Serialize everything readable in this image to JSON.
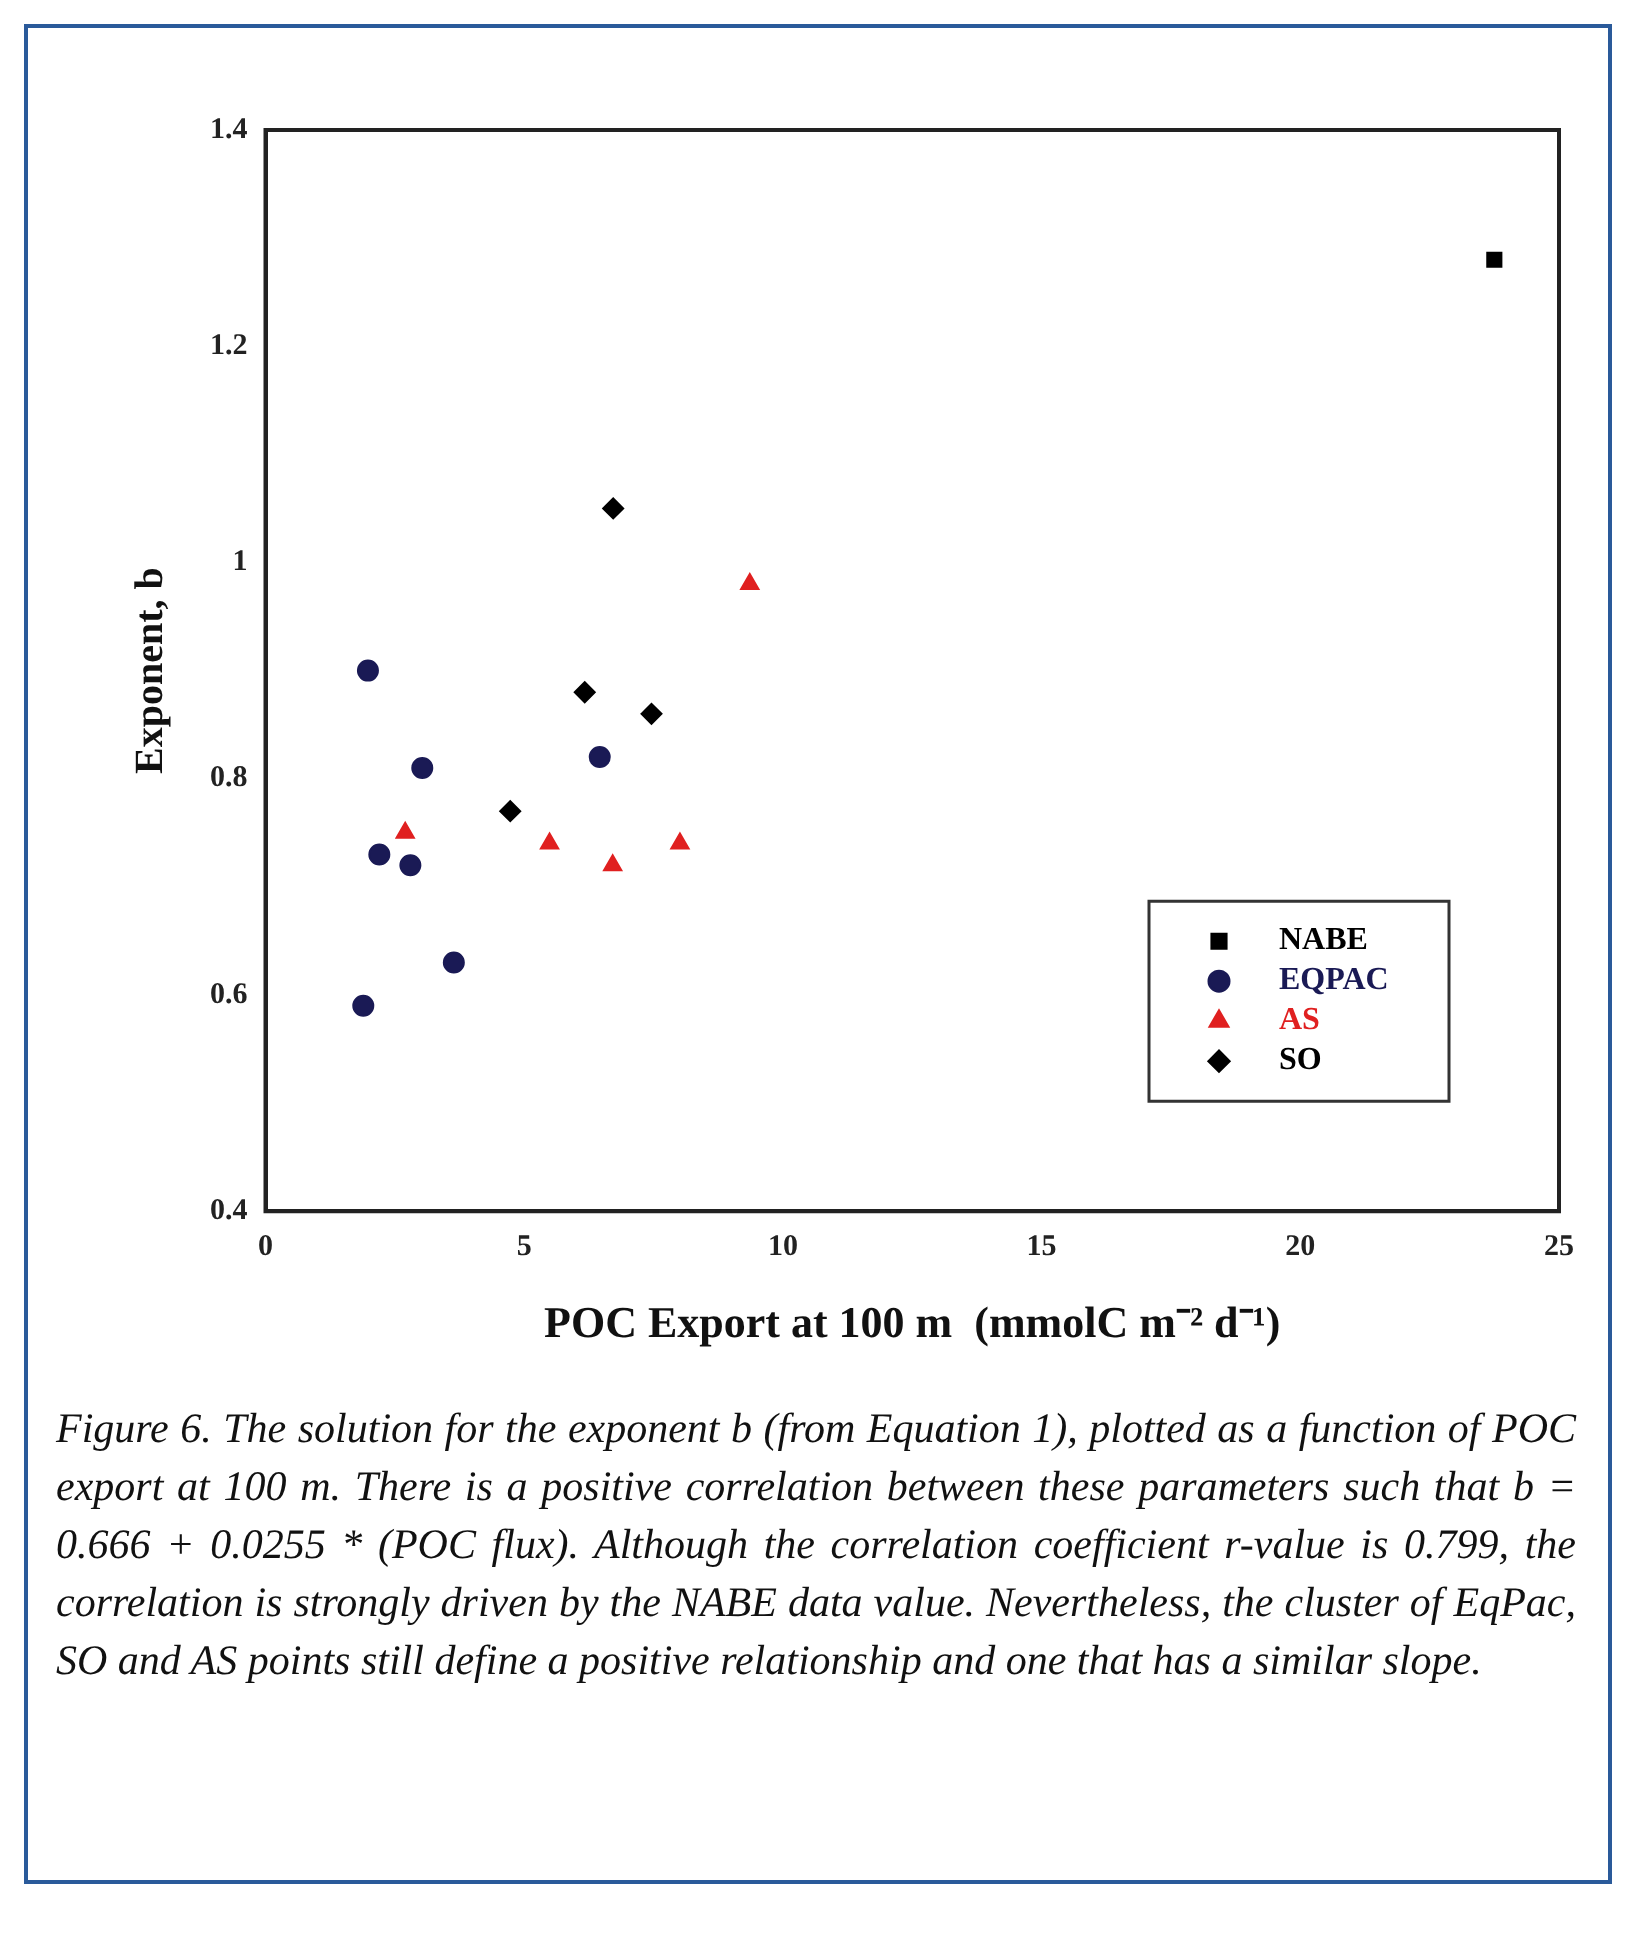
{
  "chart_data": {
    "type": "scatter",
    "xlabel": "POC Export at 100 m  (mmolC m⁻² d⁻¹)",
    "ylabel": "Exponent, b",
    "series": [
      {
        "name": "NABE",
        "color": "#000000",
        "marker": "square",
        "x": [
          23.75
        ],
        "values": [
          1.28
        ]
      },
      {
        "name": "EQPAC",
        "color": "#1a1a55",
        "marker": "circle",
        "x": [
          1.98,
          3.03,
          2.2,
          2.8,
          3.64,
          1.89,
          6.46
        ],
        "values": [
          0.9,
          0.81,
          0.73,
          0.72,
          0.63,
          0.59,
          0.82
        ]
      },
      {
        "name": "AS",
        "color": "#e02020",
        "marker": "triangle",
        "x": [
          2.7,
          5.49,
          6.71,
          8.01,
          9.36
        ],
        "values": [
          0.75,
          0.74,
          0.72,
          0.74,
          0.98
        ]
      },
      {
        "name": "SO",
        "color": "#000000",
        "marker": "diamond",
        "x": [
          6.72,
          6.17,
          7.46,
          4.73
        ],
        "values": [
          1.05,
          0.88,
          0.86,
          0.77
        ]
      }
    ],
    "xlim": [
      0,
      25
    ],
    "xticks": [
      0,
      5,
      10,
      15,
      20,
      25
    ],
    "ylim": [
      0.4,
      1.4
    ],
    "yticks": [
      0.4,
      0.6,
      0.8,
      1,
      1.2,
      1.4
    ],
    "grid": false,
    "legend": "bottom right",
    "annotations": [
      "Figure 6. The solution for the exponent b (from Equation 1), plotted as a function of POC export at 100 m. There is a positive correlation between these parameters such that b = 0.666 + 0.0255 * (POC flux). Although the correlation coefficient r-value is 0.799, the correlation is strongly driven by the NABE data value. Nevertheless, the cluster of EqPac, SO and AS points still define a positive relationship and one that has a similar slope."
    ]
  }
}
